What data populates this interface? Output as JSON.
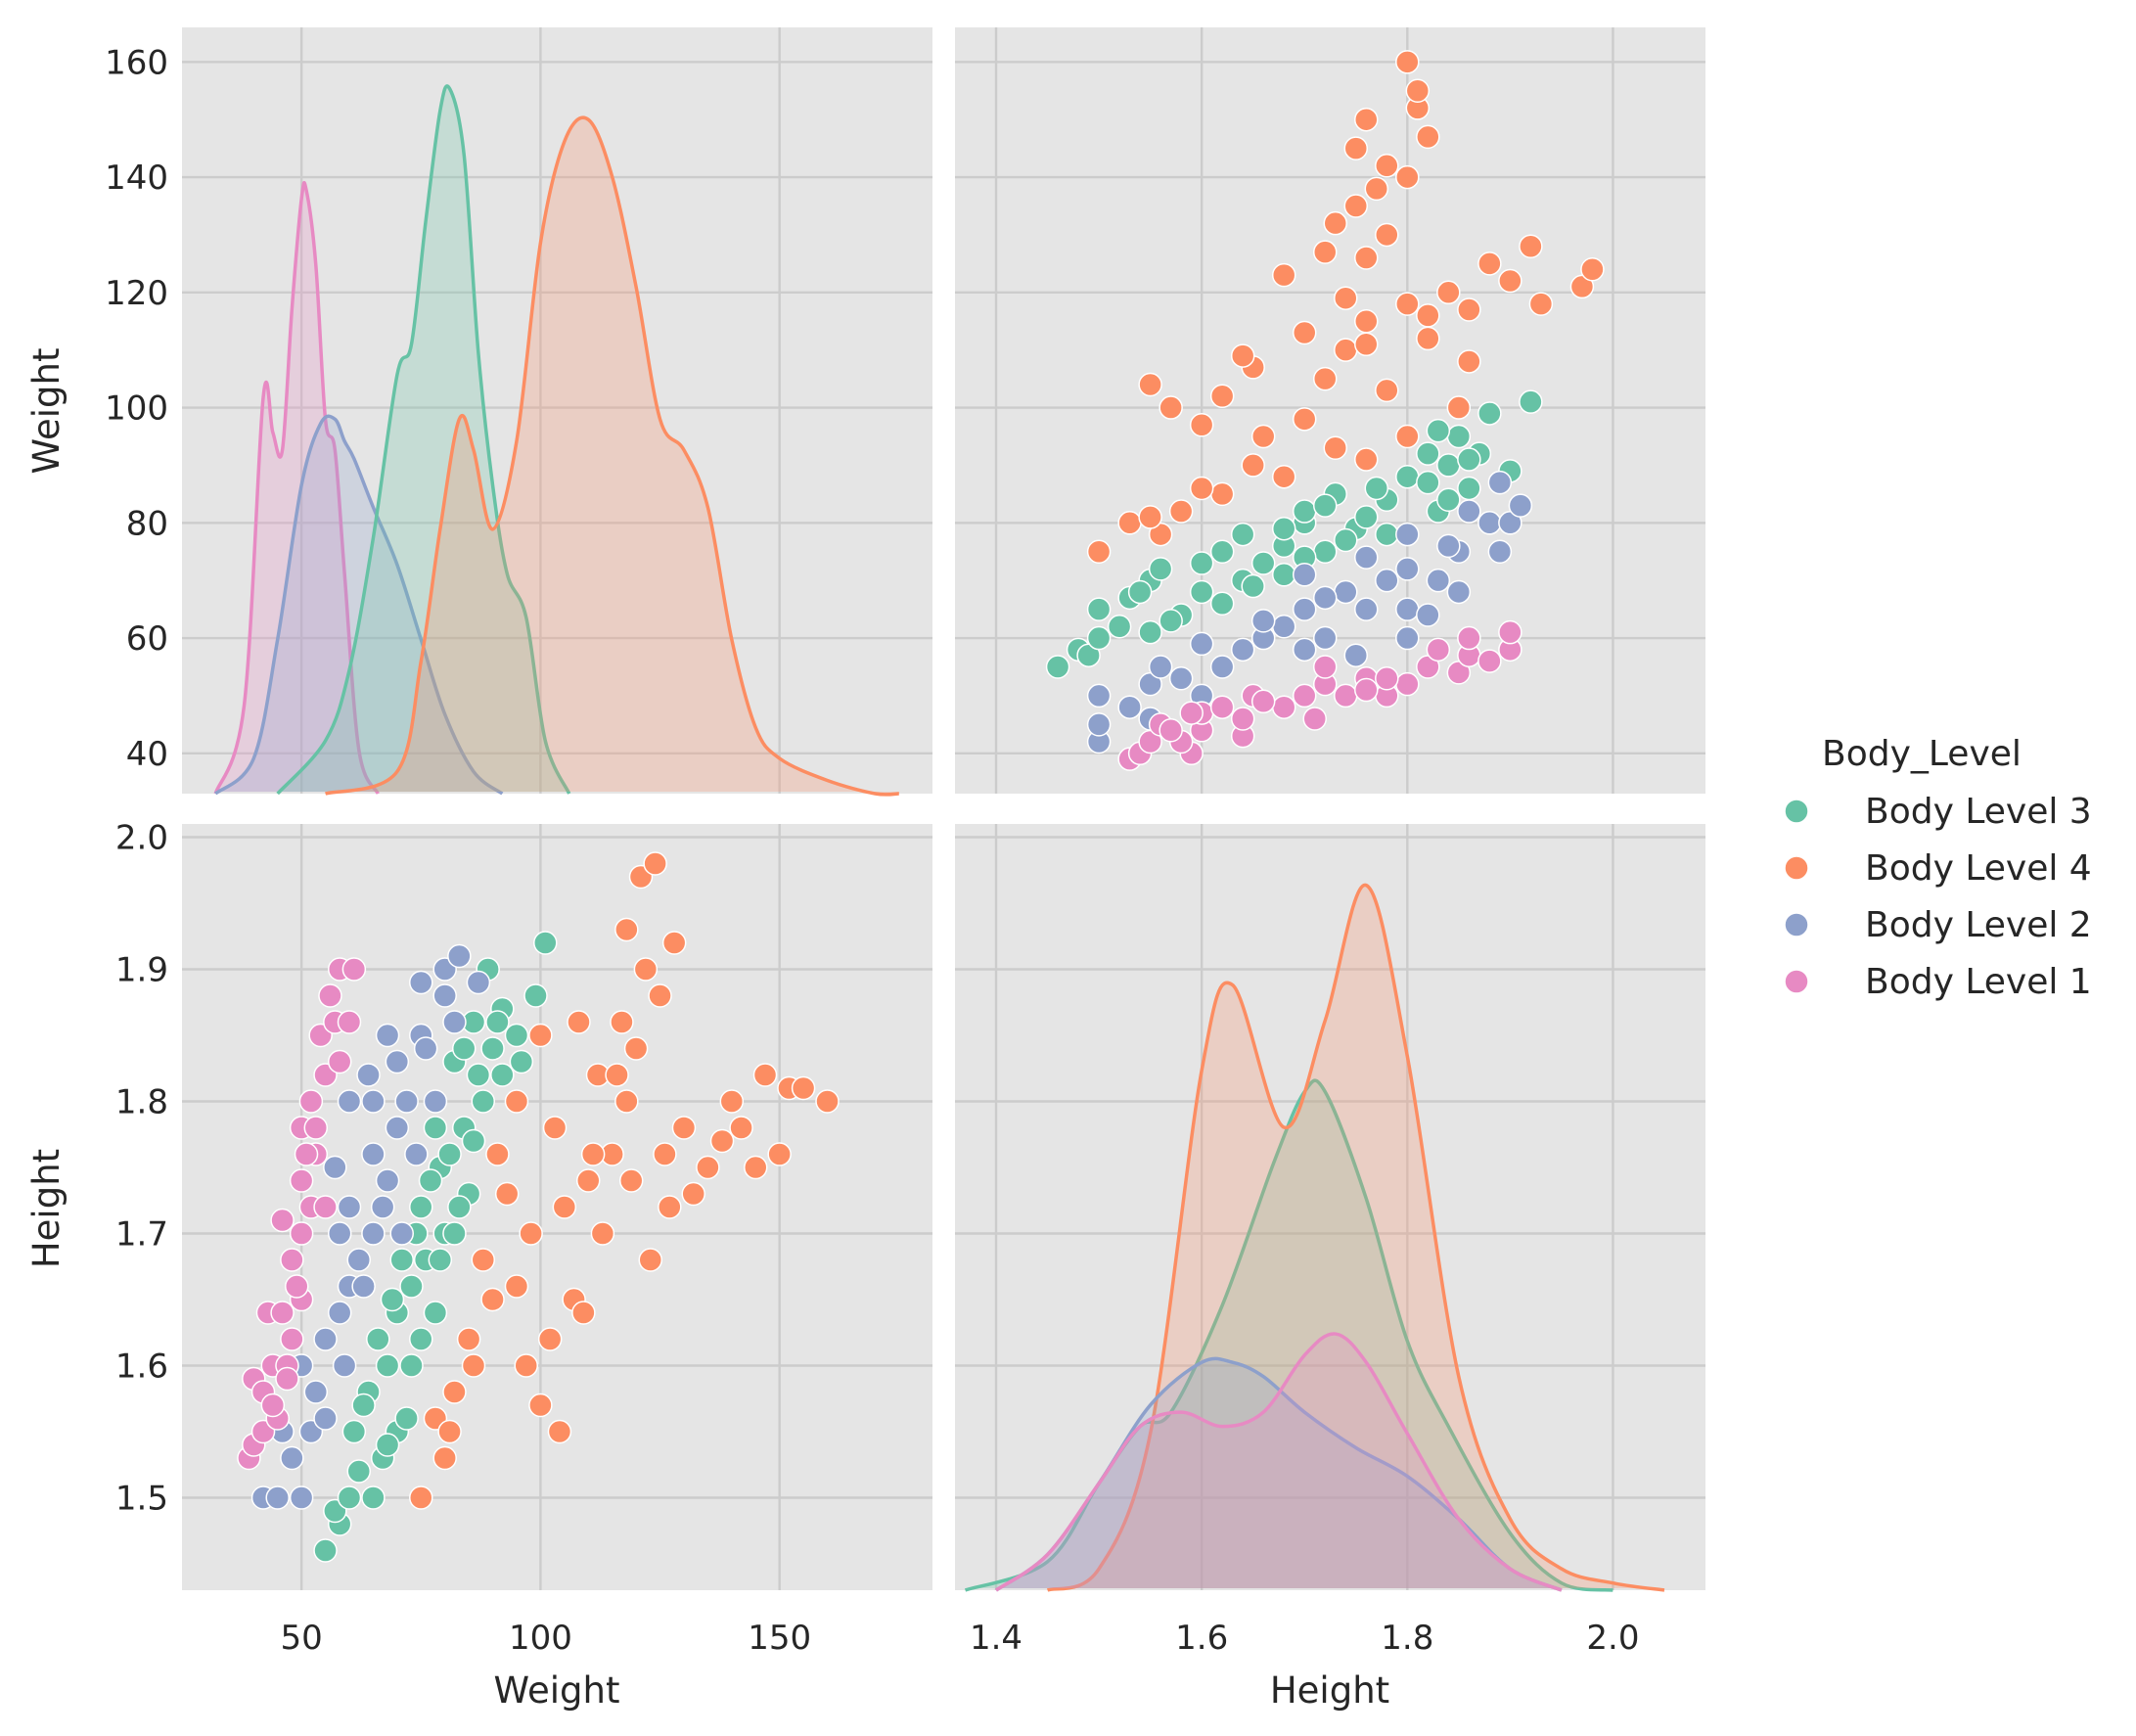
{
  "chart_data": {
    "type": "scatter",
    "kind": "pairplot",
    "variables": [
      "Weight",
      "Height"
    ],
    "hue_title": "Body_Level",
    "legend": [
      {
        "name": "Body Level 3",
        "color": "#66c2a5"
      },
      {
        "name": "Body Level 4",
        "color": "#fc8d62"
      },
      {
        "name": "Body Level 2",
        "color": "#8da0cb"
      },
      {
        "name": "Body Level 1",
        "color": "#e78ac3"
      }
    ],
    "legend_position": "right",
    "axes": {
      "Weight": {
        "lim": [
          25,
          182
        ],
        "ticks": [
          "50",
          "100",
          "150"
        ],
        "yticks": [
          "40",
          "60",
          "80",
          "100",
          "120",
          "140",
          "160"
        ],
        "ylim": [
          33,
          166
        ]
      },
      "Height": {
        "lim": [
          1.36,
          2.09
        ],
        "ticks": [
          "1.4",
          "1.6",
          "1.8",
          "2.0"
        ],
        "yticks": [
          "1.5",
          "1.6",
          "1.7",
          "1.8",
          "1.9",
          "2.0"
        ],
        "ylim": [
          1.43,
          2.01
        ]
      }
    },
    "kde": {
      "Weight": [
        {
          "name": "Body Level 1",
          "x": [
            32,
            38,
            42,
            44,
            46,
            48,
            50,
            51,
            53,
            55,
            57,
            59,
            62,
            66
          ],
          "density": [
            0,
            20,
            90,
            82,
            78,
            110,
            135,
            137,
            120,
            85,
            78,
            50,
            10,
            0
          ]
        },
        {
          "name": "Body Level 2",
          "x": [
            32,
            40,
            45,
            50,
            54,
            57,
            59,
            61,
            65,
            70,
            75,
            80,
            86,
            92
          ],
          "density": [
            0,
            8,
            35,
            70,
            84,
            85,
            80,
            76,
            65,
            52,
            35,
            18,
            5,
            0
          ]
        },
        {
          "name": "Body Level 3",
          "x": [
            45,
            55,
            60,
            65,
            70,
            73,
            76,
            79,
            81,
            84,
            87,
            90,
            93,
            97,
            101,
            106
          ],
          "density": [
            0,
            12,
            28,
            58,
            95,
            102,
            130,
            155,
            160,
            145,
            100,
            70,
            50,
            40,
            12,
            0
          ]
        },
        {
          "name": "Body Level 4",
          "x": [
            55,
            70,
            75,
            79,
            83,
            86,
            90,
            95,
            100,
            105,
            110,
            115,
            120,
            125,
            130,
            135,
            140,
            145,
            150,
            160,
            170,
            175
          ],
          "density": [
            0,
            5,
            30,
            60,
            85,
            78,
            60,
            80,
            125,
            148,
            153,
            140,
            115,
            85,
            78,
            65,
            35,
            15,
            8,
            3,
            0,
            0
          ]
        }
      ],
      "Height": [
        {
          "name": "Body Level 3",
          "x": [
            1.37,
            1.45,
            1.5,
            1.54,
            1.57,
            1.62,
            1.67,
            1.7,
            1.72,
            1.76,
            1.8,
            1.84,
            1.9,
            1.95,
            2.0
          ],
          "density": [
            0,
            4,
            15,
            23,
            25,
            40,
            60,
            70,
            70,
            55,
            35,
            23,
            8,
            1,
            0
          ]
        },
        {
          "name": "Body Level 4",
          "x": [
            1.45,
            1.5,
            1.55,
            1.6,
            1.63,
            1.68,
            1.72,
            1.76,
            1.8,
            1.85,
            1.9,
            1.95,
            2.0,
            2.05
          ],
          "density": [
            0,
            3,
            22,
            73,
            85,
            65,
            80,
            99,
            75,
            30,
            10,
            3,
            1,
            0
          ]
        },
        {
          "name": "Body Level 2",
          "x": [
            1.4,
            1.45,
            1.5,
            1.55,
            1.6,
            1.63,
            1.66,
            1.7,
            1.75,
            1.8,
            1.85,
            1.9,
            1.95
          ],
          "density": [
            0,
            5,
            15,
            26,
            32,
            32,
            30,
            25,
            20,
            16,
            10,
            3,
            0
          ]
        },
        {
          "name": "Body Level 1",
          "x": [
            1.4,
            1.45,
            1.5,
            1.54,
            1.58,
            1.62,
            1.66,
            1.7,
            1.73,
            1.76,
            1.8,
            1.85,
            1.9,
            1.95
          ],
          "density": [
            0,
            5,
            15,
            23,
            25,
            23,
            25,
            33,
            36,
            32,
            22,
            10,
            3,
            0
          ]
        }
      ]
    },
    "scatter": [
      {
        "name": "Body Level 3",
        "points": [
          [
            55,
            1.46
          ],
          [
            58,
            1.48
          ],
          [
            57,
            1.49
          ],
          [
            60,
            1.5
          ],
          [
            65,
            1.5
          ],
          [
            62,
            1.52
          ],
          [
            67,
            1.53
          ],
          [
            70,
            1.55
          ],
          [
            64,
            1.58
          ],
          [
            72,
            1.56
          ],
          [
            68,
            1.6
          ],
          [
            75,
            1.62
          ],
          [
            70,
            1.64
          ],
          [
            73,
            1.66
          ],
          [
            78,
            1.64
          ],
          [
            76,
            1.68
          ],
          [
            80,
            1.7
          ],
          [
            75,
            1.72
          ],
          [
            82,
            1.7
          ],
          [
            85,
            1.73
          ],
          [
            79,
            1.75
          ],
          [
            84,
            1.78
          ],
          [
            88,
            1.8
          ],
          [
            82,
            1.83
          ],
          [
            90,
            1.84
          ],
          [
            86,
            1.86
          ],
          [
            92,
            1.87
          ],
          [
            95,
            1.85
          ],
          [
            89,
            1.9
          ],
          [
            101,
            1.92
          ],
          [
            66,
            1.62
          ],
          [
            71,
            1.68
          ],
          [
            77,
            1.74
          ],
          [
            81,
            1.76
          ],
          [
            87,
            1.82
          ],
          [
            92,
            1.82
          ],
          [
            74,
            1.7
          ],
          [
            69,
            1.65
          ],
          [
            63,
            1.57
          ],
          [
            83,
            1.72
          ],
          [
            96,
            1.83
          ],
          [
            99,
            1.88
          ],
          [
            79,
            1.68
          ],
          [
            86,
            1.77
          ],
          [
            61,
            1.55
          ],
          [
            73,
            1.6
          ],
          [
            78,
            1.78
          ],
          [
            84,
            1.84
          ],
          [
            91,
            1.86
          ],
          [
            68,
            1.54
          ]
        ]
      },
      {
        "name": "Body Level 4",
        "points": [
          [
            75,
            1.5
          ],
          [
            80,
            1.53
          ],
          [
            78,
            1.56
          ],
          [
            82,
            1.58
          ],
          [
            85,
            1.62
          ],
          [
            90,
            1.65
          ],
          [
            88,
            1.68
          ],
          [
            95,
            1.66
          ],
          [
            100,
            1.57
          ],
          [
            102,
            1.62
          ],
          [
            98,
            1.7
          ],
          [
            105,
            1.72
          ],
          [
            110,
            1.74
          ],
          [
            103,
            1.78
          ],
          [
            115,
            1.76
          ],
          [
            118,
            1.8
          ],
          [
            112,
            1.82
          ],
          [
            120,
            1.84
          ],
          [
            117,
            1.86
          ],
          [
            125,
            1.88
          ],
          [
            122,
            1.9
          ],
          [
            128,
            1.92
          ],
          [
            118,
            1.93
          ],
          [
            121,
            1.97
          ],
          [
            124,
            1.98
          ],
          [
            130,
            1.78
          ],
          [
            135,
            1.75
          ],
          [
            140,
            1.8
          ],
          [
            145,
            1.75
          ],
          [
            150,
            1.76
          ],
          [
            152,
            1.81
          ],
          [
            155,
            1.81
          ],
          [
            160,
            1.8
          ],
          [
            147,
            1.82
          ],
          [
            127,
            1.72
          ],
          [
            123,
            1.68
          ],
          [
            107,
            1.65
          ],
          [
            95,
            1.8
          ],
          [
            100,
            1.85
          ],
          [
            108,
            1.86
          ],
          [
            93,
            1.73
          ],
          [
            97,
            1.6
          ],
          [
            104,
            1.55
          ],
          [
            113,
            1.7
          ],
          [
            132,
            1.73
          ],
          [
            138,
            1.77
          ],
          [
            142,
            1.78
          ],
          [
            111,
            1.76
          ],
          [
            119,
            1.74
          ],
          [
            126,
            1.76
          ],
          [
            86,
            1.6
          ],
          [
            91,
            1.76
          ],
          [
            116,
            1.82
          ],
          [
            109,
            1.64
          ],
          [
            81,
            1.55
          ]
        ]
      },
      {
        "name": "Body Level 2",
        "points": [
          [
            42,
            1.5
          ],
          [
            45,
            1.5
          ],
          [
            50,
            1.5
          ],
          [
            48,
            1.53
          ],
          [
            52,
            1.55
          ],
          [
            55,
            1.56
          ],
          [
            50,
            1.6
          ],
          [
            55,
            1.62
          ],
          [
            58,
            1.64
          ],
          [
            60,
            1.66
          ],
          [
            62,
            1.68
          ],
          [
            58,
            1.7
          ],
          [
            65,
            1.7
          ],
          [
            60,
            1.72
          ],
          [
            68,
            1.74
          ],
          [
            65,
            1.76
          ],
          [
            70,
            1.78
          ],
          [
            72,
            1.8
          ],
          [
            60,
            1.8
          ],
          [
            65,
            1.8
          ],
          [
            70,
            1.83
          ],
          [
            75,
            1.85
          ],
          [
            68,
            1.85
          ],
          [
            80,
            1.88
          ],
          [
            75,
            1.89
          ],
          [
            80,
            1.9
          ],
          [
            83,
            1.91
          ],
          [
            87,
            1.89
          ],
          [
            74,
            1.76
          ],
          [
            78,
            1.8
          ],
          [
            57,
            1.75
          ],
          [
            63,
            1.66
          ],
          [
            53,
            1.58
          ],
          [
            67,
            1.72
          ],
          [
            71,
            1.7
          ],
          [
            46,
            1.55
          ],
          [
            59,
            1.6
          ],
          [
            76,
            1.84
          ],
          [
            64,
            1.82
          ],
          [
            82,
            1.86
          ]
        ]
      },
      {
        "name": "Body Level 1",
        "points": [
          [
            39,
            1.53
          ],
          [
            40,
            1.54
          ],
          [
            42,
            1.55
          ],
          [
            40,
            1.59
          ],
          [
            42,
            1.58
          ],
          [
            45,
            1.56
          ],
          [
            44,
            1.6
          ],
          [
            47,
            1.6
          ],
          [
            43,
            1.64
          ],
          [
            46,
            1.64
          ],
          [
            48,
            1.62
          ],
          [
            50,
            1.65
          ],
          [
            48,
            1.68
          ],
          [
            50,
            1.7
          ],
          [
            52,
            1.72
          ],
          [
            50,
            1.74
          ],
          [
            53,
            1.76
          ],
          [
            50,
            1.78
          ],
          [
            52,
            1.8
          ],
          [
            55,
            1.82
          ],
          [
            54,
            1.85
          ],
          [
            57,
            1.86
          ],
          [
            60,
            1.86
          ],
          [
            56,
            1.88
          ],
          [
            58,
            1.9
          ],
          [
            61,
            1.9
          ],
          [
            51,
            1.76
          ],
          [
            49,
            1.66
          ],
          [
            46,
            1.71
          ],
          [
            55,
            1.72
          ],
          [
            47,
            1.59
          ],
          [
            53,
            1.78
          ],
          [
            58,
            1.83
          ],
          [
            44,
            1.57
          ]
        ]
      }
    ]
  }
}
